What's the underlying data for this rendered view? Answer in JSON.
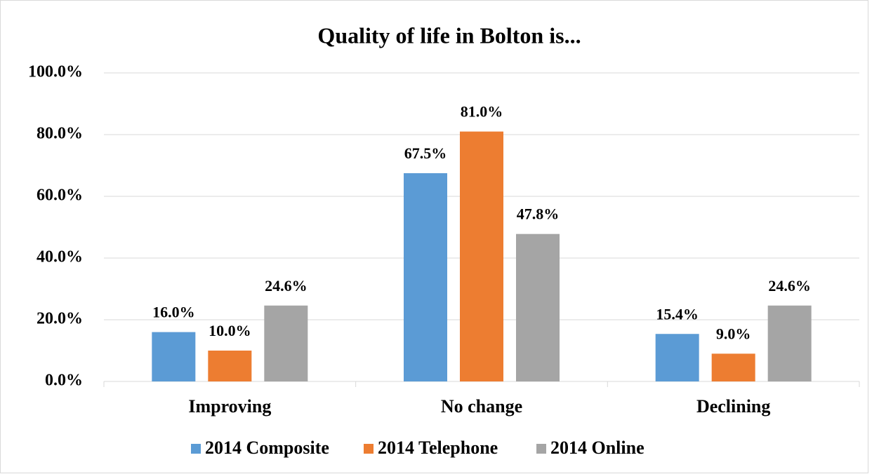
{
  "chart_data": {
    "type": "bar",
    "title": "Quality of life in Bolton is...",
    "categories": [
      "Improving",
      "No change",
      "Declining"
    ],
    "series": [
      {
        "name": "2014 Composite",
        "color": "#5b9bd5",
        "values": [
          16.0,
          67.5,
          15.4
        ],
        "value_labels": [
          "16.0%",
          "67.5%",
          "15.4%"
        ]
      },
      {
        "name": "2014 Telephone",
        "color": "#ed7d31",
        "values": [
          10.0,
          81.0,
          9.0
        ],
        "value_labels": [
          "10.0%",
          "81.0%",
          "9.0%"
        ]
      },
      {
        "name": "2014 Online",
        "color": "#a5a5a5",
        "values": [
          24.6,
          47.8,
          24.6
        ],
        "value_labels": [
          "24.6%",
          "47.8%",
          "24.6%"
        ]
      }
    ],
    "ylim": [
      0,
      100
    ],
    "yticks": [
      {
        "value": 0,
        "label": "0.0%"
      },
      {
        "value": 20,
        "label": "20.0%"
      },
      {
        "value": 40,
        "label": "40.0%"
      },
      {
        "value": 60,
        "label": "60.0%"
      },
      {
        "value": 80,
        "label": "80.0%"
      },
      {
        "value": 100,
        "label": "100.0%"
      }
    ],
    "grid": true,
    "legend": "bottom"
  }
}
